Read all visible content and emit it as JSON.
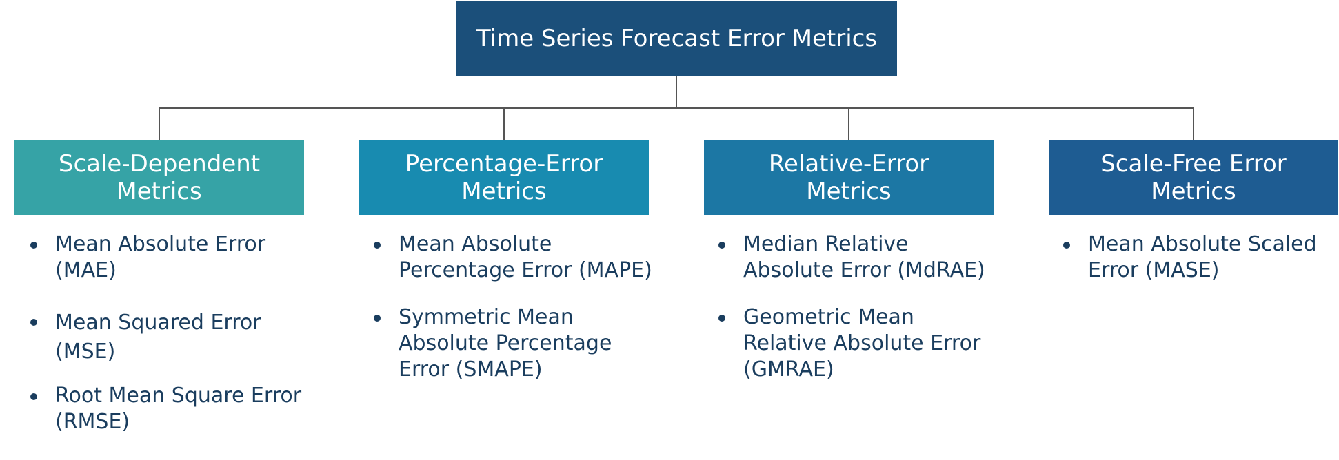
{
  "root": {
    "title": "Time Series Forecast Error Metrics",
    "color": "#1b4f7a"
  },
  "categories": [
    {
      "title": "Scale-Dependent Metrics",
      "color": "#36a3a6",
      "items": [
        "Mean Absolute Error (MAE)",
        "Mean Squared Error (MSE)",
        "Root Mean Square Error (RMSE)"
      ]
    },
    {
      "title": "Percentage-Error Metrics",
      "color": "#188bb0",
      "items": [
        "Mean Absolute Percentage Error (MAPE)",
        "Symmetric Mean Absolute Percentage Error (SMAPE)"
      ]
    },
    {
      "title": "Relative-Error Metrics",
      "color": "#1c77a4",
      "items": [
        "Median Relative Absolute Error (MdRAE)",
        "Geometric Mean Relative Absolute Error (GMRAE)"
      ]
    },
    {
      "title": "Scale-Free Error Metrics",
      "color": "#1e5c92",
      "items": [
        "Mean Absolute Scaled Error (MASE)"
      ]
    }
  ],
  "connector_color": "#555555"
}
